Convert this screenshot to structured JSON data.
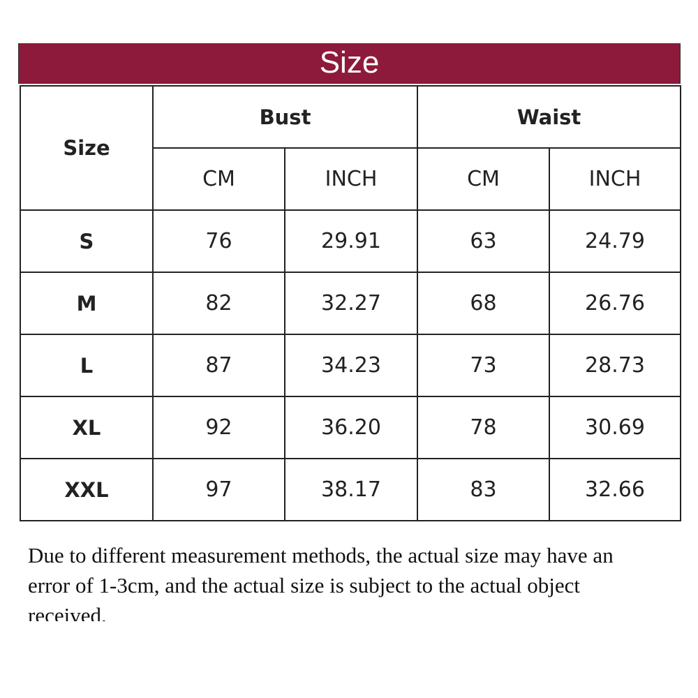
{
  "banner": {
    "title": "Size"
  },
  "table": {
    "header": {
      "size": "Size",
      "groups": [
        "Bust",
        "Waist"
      ],
      "units": [
        "CM",
        "INCH",
        "CM",
        "INCH"
      ]
    },
    "rows": [
      [
        "S",
        "76",
        "29.91",
        "63",
        "24.79"
      ],
      [
        "M",
        "82",
        "32.27",
        "68",
        "26.76"
      ],
      [
        "L",
        "87",
        "34.23",
        "73",
        "28.73"
      ],
      [
        "XL",
        "92",
        "36.20",
        "78",
        "30.69"
      ],
      [
        "XXL",
        "97",
        "38.17",
        "83",
        "32.66"
      ]
    ]
  },
  "note": "Due to different measurement methods, the actual size may have an error of 1-3cm, and the actual size is subject to the actual object received."
}
